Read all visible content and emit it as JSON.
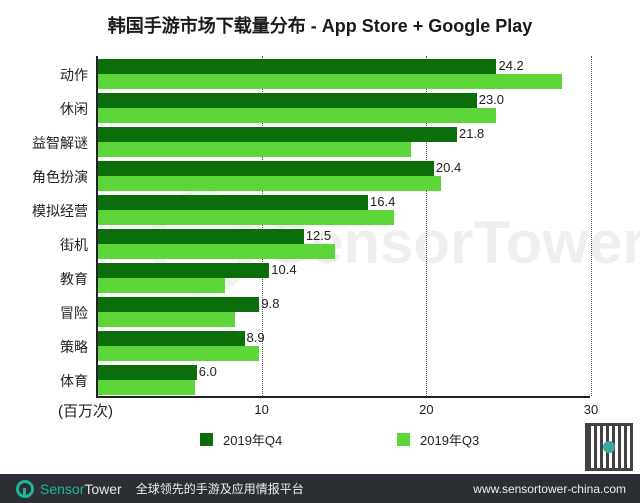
{
  "title": "韩国手游市场下载量分布 - App Store + Google Play",
  "chart_data": {
    "type": "bar",
    "orientation": "horizontal",
    "title": "韩国手游市场下载量分布 - App Store + Google Play",
    "xlabel": "(百万次)",
    "ylabel": "",
    "xlim": [
      0,
      30
    ],
    "xticks": [
      10,
      20,
      30
    ],
    "grid": "vertical dotted at 10, 20, 30",
    "legend_position": "bottom",
    "categories": [
      "动作",
      "休闲",
      "益智解谜",
      "角色扮演",
      "模拟经营",
      "街机",
      "教育",
      "冒险",
      "策略",
      "体育"
    ],
    "series": [
      {
        "name": "2019年Q4",
        "color": "#0b6e0b",
        "values": [
          24.2,
          23.0,
          21.8,
          20.4,
          16.4,
          12.5,
          10.4,
          9.8,
          8.9,
          6.0
        ],
        "labeled": true
      },
      {
        "name": "2019年Q3",
        "color": "#5dd63a",
        "values": [
          28.2,
          24.2,
          19.0,
          20.8,
          18.0,
          14.4,
          7.7,
          8.3,
          9.8,
          5.9
        ],
        "labeled": false
      }
    ]
  },
  "axis": {
    "unit_label": "(百万次)",
    "ticks": [
      "10",
      "20",
      "30"
    ]
  },
  "legend": [
    {
      "label": "2019年Q4",
      "color": "#0b6e0b"
    },
    {
      "label": "2019年Q3",
      "color": "#5dd63a"
    }
  ],
  "watermark": "SensorTower",
  "footer": {
    "brand_sensor": "Sensor",
    "brand_tower": "Tower",
    "slogan": "全球领先的手游及应用情报平台",
    "url": "www.sensortower-china.com"
  }
}
